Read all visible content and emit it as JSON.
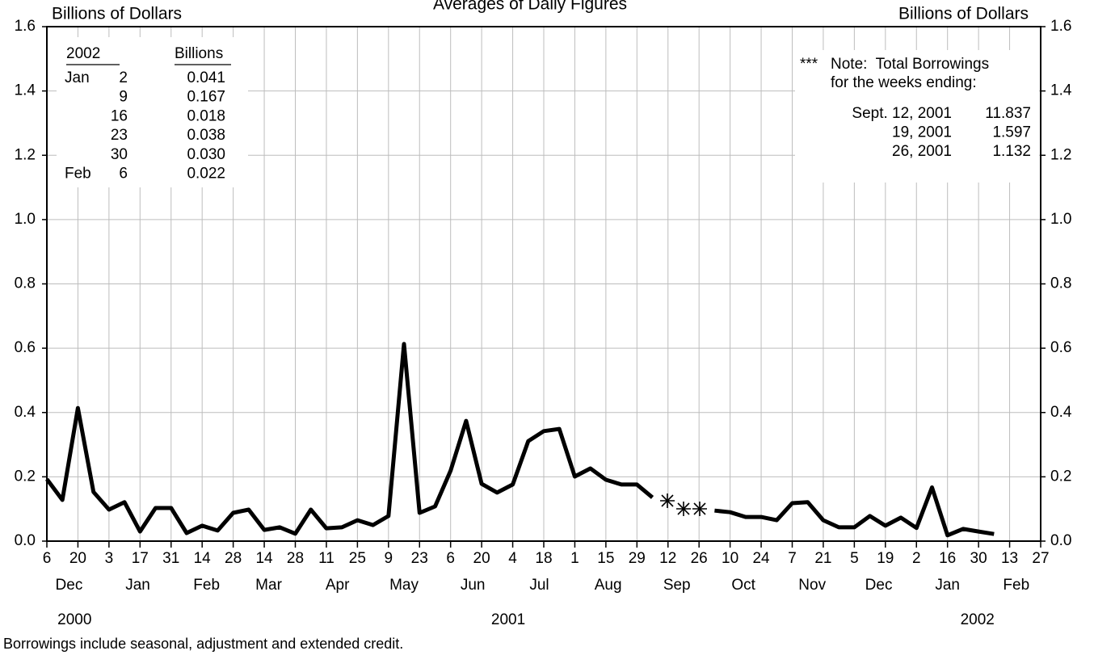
{
  "chart_data": {
    "type": "line",
    "title": "Averages of Daily Figures",
    "y_label_left": "Billions of Dollars",
    "y_label_right": "Billions of Dollars",
    "footnote": "Borrowings include seasonal, adjustment and extended credit.",
    "x": [
      "2000-12-06",
      "2000-12-13",
      "2000-12-20",
      "2000-12-27",
      "2001-01-03",
      "2001-01-10",
      "2001-01-17",
      "2001-01-24",
      "2001-01-31",
      "2001-02-07",
      "2001-02-14",
      "2001-02-21",
      "2001-02-28",
      "2001-03-07",
      "2001-03-14",
      "2001-03-21",
      "2001-03-28",
      "2001-04-04",
      "2001-04-11",
      "2001-04-18",
      "2001-04-25",
      "2001-05-02",
      "2001-05-09",
      "2001-05-16",
      "2001-05-23",
      "2001-05-30",
      "2001-06-06",
      "2001-06-13",
      "2001-06-20",
      "2001-06-27",
      "2001-07-04",
      "2001-07-11",
      "2001-07-18",
      "2001-07-25",
      "2001-08-01",
      "2001-08-08",
      "2001-08-15",
      "2001-08-22",
      "2001-08-29",
      "2001-09-05",
      "2001-09-12",
      "2001-09-19",
      "2001-09-26",
      "2001-10-03",
      "2001-10-10",
      "2001-10-17",
      "2001-10-24",
      "2001-10-31",
      "2001-11-07",
      "2001-11-14",
      "2001-11-21",
      "2001-11-28",
      "2001-12-05",
      "2001-12-12",
      "2001-12-19",
      "2001-12-26",
      "2002-01-02",
      "2002-01-09",
      "2002-01-16",
      "2002-01-23",
      "2002-01-30",
      "2002-02-06"
    ],
    "series": [
      {
        "name": "Total Borrowings",
        "color": "#000000",
        "values": [
          0.193,
          0.128,
          0.414,
          0.153,
          0.098,
          0.121,
          0.03,
          0.103,
          0.103,
          0.025,
          0.048,
          0.033,
          0.088,
          0.098,
          0.035,
          0.043,
          0.023,
          0.098,
          0.04,
          0.043,
          0.065,
          0.05,
          0.078,
          0.613,
          0.088,
          0.108,
          0.219,
          0.374,
          0.178,
          0.151,
          0.176,
          0.311,
          0.342,
          0.349,
          0.201,
          0.226,
          0.191,
          0.176,
          0.176,
          0.136,
          null,
          null,
          null,
          0.095,
          0.09,
          0.075,
          0.075,
          0.065,
          0.118,
          0.121,
          0.065,
          0.043,
          0.043,
          0.078,
          0.048,
          0.073,
          0.041,
          0.167,
          0.018,
          0.038,
          0.03,
          0.022
        ]
      }
    ],
    "xlim": [
      "2000-12-06",
      "2002-02-27"
    ],
    "xticks": [
      {
        "value": "2000-12-06",
        "label": "6"
      },
      {
        "value": "2000-12-20",
        "label": "20"
      },
      {
        "value": "2001-01-03",
        "label": "3"
      },
      {
        "value": "2001-01-17",
        "label": "17"
      },
      {
        "value": "2001-01-31",
        "label": "31"
      },
      {
        "value": "2001-02-14",
        "label": "14"
      },
      {
        "value": "2001-02-28",
        "label": "28"
      },
      {
        "value": "2001-03-14",
        "label": "14"
      },
      {
        "value": "2001-03-28",
        "label": "28"
      },
      {
        "value": "2001-04-11",
        "label": "11"
      },
      {
        "value": "2001-04-25",
        "label": "25"
      },
      {
        "value": "2001-05-09",
        "label": "9"
      },
      {
        "value": "2001-05-23",
        "label": "23"
      },
      {
        "value": "2001-06-06",
        "label": "6"
      },
      {
        "value": "2001-06-20",
        "label": "20"
      },
      {
        "value": "2001-07-04",
        "label": "4"
      },
      {
        "value": "2001-07-18",
        "label": "18"
      },
      {
        "value": "2001-08-01",
        "label": "1"
      },
      {
        "value": "2001-08-15",
        "label": "15"
      },
      {
        "value": "2001-08-29",
        "label": "29"
      },
      {
        "value": "2001-09-12",
        "label": "12"
      },
      {
        "value": "2001-09-26",
        "label": "26"
      },
      {
        "value": "2001-10-10",
        "label": "10"
      },
      {
        "value": "2001-10-24",
        "label": "24"
      },
      {
        "value": "2001-11-07",
        "label": "7"
      },
      {
        "value": "2001-11-21",
        "label": "21"
      },
      {
        "value": "2001-12-05",
        "label": "5"
      },
      {
        "value": "2001-12-19",
        "label": "19"
      },
      {
        "value": "2002-01-02",
        "label": "2"
      },
      {
        "value": "2002-01-16",
        "label": "16"
      },
      {
        "value": "2002-01-30",
        "label": "30"
      },
      {
        "value": "2002-02-13",
        "label": "13"
      },
      {
        "value": "2002-02-27",
        "label": "27"
      }
    ],
    "months": [
      {
        "value": "2000-12",
        "label": "Dec"
      },
      {
        "value": "2001-01",
        "label": "Jan"
      },
      {
        "value": "2001-02",
        "label": "Feb"
      },
      {
        "value": "2001-03",
        "label": "Mar"
      },
      {
        "value": "2001-04",
        "label": "Apr"
      },
      {
        "value": "2001-05",
        "label": "May"
      },
      {
        "value": "2001-06",
        "label": "Jun"
      },
      {
        "value": "2001-07",
        "label": "Jul"
      },
      {
        "value": "2001-08",
        "label": "Aug"
      },
      {
        "value": "2001-09",
        "label": "Sep"
      },
      {
        "value": "2001-10",
        "label": "Oct"
      },
      {
        "value": "2001-11",
        "label": "Nov"
      },
      {
        "value": "2001-12",
        "label": "Dec"
      },
      {
        "value": "2002-01",
        "label": "Jan"
      },
      {
        "value": "2002-02",
        "label": "Feb"
      }
    ],
    "years": [
      "2000",
      "2001",
      "2002"
    ],
    "ylim": [
      0,
      1.6
    ],
    "yticks": [
      {
        "value": 0,
        "label": "0.0"
      },
      0.2,
      0.4,
      0.6,
      0.8,
      {
        "value": 1,
        "label": "1.0"
      },
      1.2,
      1.4,
      1.6
    ],
    "mirror_y_axis": true,
    "grid": true,
    "inset_table": {
      "headers": [
        "2002",
        "Billions"
      ],
      "rows": [
        [
          "Jan",
          "2",
          "0.041"
        ],
        [
          null,
          "9",
          "0.167"
        ],
        [
          null,
          "16",
          "0.018"
        ],
        [
          null,
          "23",
          "0.038"
        ],
        [
          null,
          "30",
          "0.030"
        ],
        [
          "Feb",
          "6",
          "0.022"
        ]
      ]
    },
    "note": {
      "marker": "***",
      "lines": [
        "Note:  Total Borrowings",
        "for the weeks ending:"
      ],
      "rows": [
        [
          "Sept. 12, 2001",
          "11.837"
        ],
        [
          "19, 2001",
          "1.597"
        ],
        [
          "26, 2001",
          "1.132"
        ]
      ]
    }
  }
}
